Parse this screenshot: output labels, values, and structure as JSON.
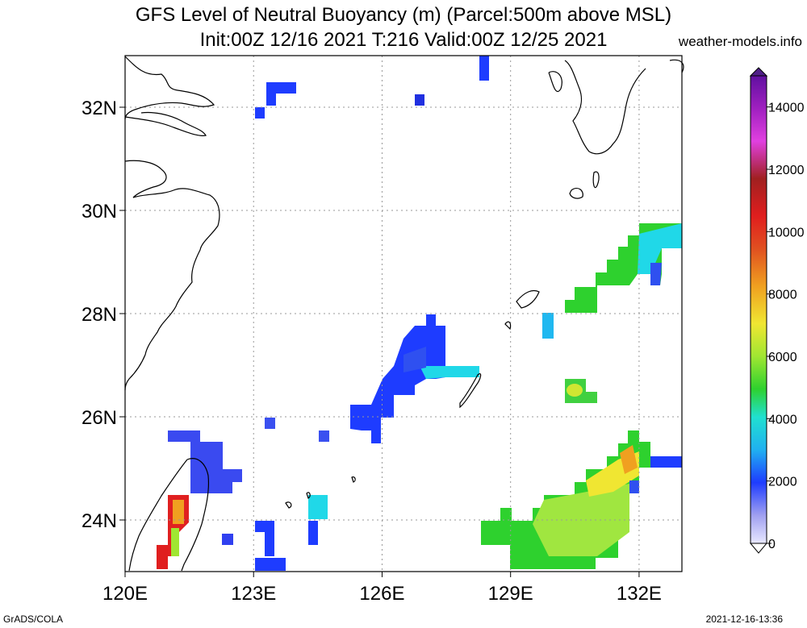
{
  "title_line1": "GFS Level of Neutral Buoyancy (m) (Parcel:500m above MSL)",
  "title_line2": "Init:00Z 12/16 2021 T:216 Valid:00Z 12/25 2021",
  "credit": "weather-models.info",
  "footer_left": "GrADS/COLA",
  "footer_right": "2021-12-16-13:36",
  "map": {
    "lon_range": [
      120,
      133
    ],
    "lat_range": [
      23,
      33
    ],
    "lon_ticks": [
      "120E",
      "123E",
      "126E",
      "129E",
      "132E"
    ],
    "lat_ticks": [
      "32N",
      "30N",
      "28N",
      "26N",
      "24N"
    ]
  },
  "colorbar": {
    "labels": [
      "14000",
      "12000",
      "10000",
      "8000",
      "6000",
      "4000",
      "2000",
      "0"
    ]
  },
  "colors": {
    "blue": "#1e3cff",
    "blue2": "#2f4bef",
    "cyan": "#20e0e0",
    "green": "#2ed12e",
    "lime": "#a0e632",
    "yellow": "#f0e632",
    "orange": "#f0a020",
    "red": "#e01e1e",
    "coast": "#000000",
    "grid": "#999999"
  }
}
